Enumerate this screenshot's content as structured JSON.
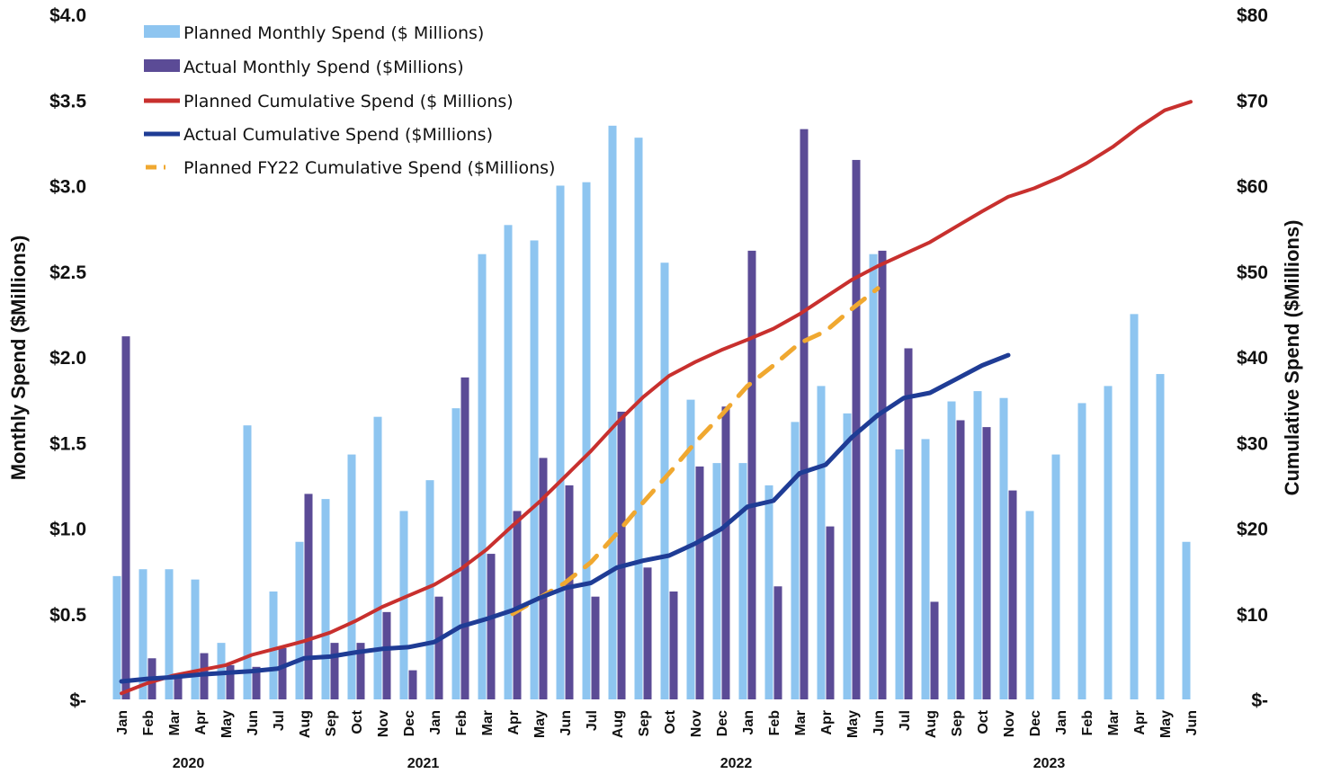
{
  "chart_data": {
    "type": "bar",
    "categories": [
      "Jan",
      "Feb",
      "Mar",
      "Apr",
      "May",
      "Jun",
      "Jul",
      "Aug",
      "Sep",
      "Oct",
      "Nov",
      "Dec",
      "Jan",
      "Feb",
      "Mar",
      "Apr",
      "May",
      "Jun",
      "Jul",
      "Aug",
      "Sep",
      "Oct",
      "Nov",
      "Dec",
      "Jan",
      "Feb",
      "Mar",
      "Apr",
      "May",
      "Jun",
      "Jul",
      "Aug",
      "Sep",
      "Oct",
      "Nov",
      "Dec",
      "Jan",
      "Feb",
      "Mar",
      "Apr",
      "May",
      "Jun"
    ],
    "year_labels": [
      {
        "label": "2020",
        "index": 2.5
      },
      {
        "label": "2021",
        "index": 11.5
      },
      {
        "label": "2022",
        "index": 23.5
      },
      {
        "label": "2023",
        "index": 35.5
      }
    ],
    "ylabel_left": "Monthly Spend ($Millions)",
    "ylabel_right": "Cumulative Spend ($Millions)",
    "ylim_left": [
      0,
      4
    ],
    "ylim_right": [
      0,
      80
    ],
    "yticks_left": [
      "$-",
      "$0.5",
      "$1.0",
      "$1.5",
      "$2.0",
      "$2.5",
      "$3.0",
      "$3.5",
      "$4.0"
    ],
    "yticks_right": [
      "$-",
      "$10",
      "$20",
      "$30",
      "$40",
      "$50",
      "$60",
      "$70",
      "$80"
    ],
    "legend_position": "top-left",
    "series": [
      {
        "name": "Planned Monthly Spend ($ Millions)",
        "type": "bar",
        "axis": "left",
        "color": "#8ec5f0",
        "values": [
          0.72,
          0.76,
          0.76,
          0.7,
          0.33,
          1.6,
          0.63,
          0.92,
          1.17,
          1.43,
          1.65,
          1.1,
          1.28,
          1.7,
          2.6,
          2.77,
          2.68,
          3.0,
          3.02,
          3.35,
          3.28,
          2.55,
          1.75,
          1.38,
          1.38,
          1.25,
          1.62,
          1.83,
          1.67,
          2.6,
          1.46,
          1.52,
          1.74,
          1.8,
          1.76,
          1.1,
          1.43,
          1.73,
          1.83,
          2.25,
          1.9,
          0.92
        ]
      },
      {
        "name": "Actual Monthly Spend ($Millions)",
        "type": "bar",
        "axis": "left",
        "color": "#5b4b96",
        "values": [
          2.12,
          0.24,
          0.13,
          0.27,
          0.2,
          0.19,
          0.3,
          1.2,
          0.33,
          0.33,
          0.51,
          0.17,
          0.6,
          1.88,
          0.85,
          1.1,
          1.41,
          1.25,
          0.6,
          1.68,
          0.77,
          0.63,
          1.36,
          1.71,
          2.62,
          0.66,
          3.33,
          1.01,
          3.15,
          2.62,
          2.05,
          0.57,
          1.63,
          1.59,
          1.22,
          null,
          null,
          null,
          null,
          null,
          null,
          null
        ]
      },
      {
        "name": "Planned Cumulative Spend ($ Millions)",
        "type": "line",
        "axis": "right",
        "color": "#c8302e",
        "values": [
          0.7,
          1.9,
          2.8,
          3.4,
          4.0,
          5.2,
          6.0,
          6.8,
          7.8,
          9.2,
          10.8,
          12.1,
          13.4,
          15.2,
          17.5,
          20.3,
          23.0,
          26.0,
          29.0,
          32.3,
          35.3,
          37.8,
          39.4,
          40.8,
          42.0,
          43.3,
          45.0,
          47.0,
          49.0,
          50.6,
          52.0,
          53.4,
          55.2,
          57.0,
          58.7,
          59.7,
          61.0,
          62.6,
          64.5,
          66.8,
          68.8,
          69.8
        ]
      },
      {
        "name": "Actual Cumulative Spend ($Millions)",
        "type": "line",
        "axis": "right",
        "color": "#1f3c95",
        "values": [
          2.1,
          2.4,
          2.6,
          2.9,
          3.1,
          3.3,
          3.6,
          4.8,
          5.0,
          5.5,
          5.9,
          6.1,
          6.7,
          8.5,
          9.4,
          10.4,
          11.8,
          13.0,
          13.6,
          15.4,
          16.2,
          16.8,
          18.2,
          19.9,
          22.5,
          23.2,
          26.4,
          27.4,
          30.6,
          33.2,
          35.2,
          35.8,
          37.4,
          39.0,
          40.2,
          null,
          null,
          null,
          null,
          null,
          null,
          null
        ]
      },
      {
        "name": "Planned FY22 Cumulative Spend ($Millions)",
        "type": "dashed-line",
        "axis": "right",
        "color": "#f0a830",
        "values": [
          null,
          null,
          null,
          null,
          null,
          null,
          null,
          null,
          null,
          null,
          null,
          null,
          null,
          null,
          null,
          10.0,
          11.8,
          13.6,
          16.0,
          19.4,
          23.0,
          26.4,
          30.0,
          33.2,
          36.6,
          39.0,
          41.6,
          43.0,
          45.6,
          48.0,
          null,
          null,
          null,
          null,
          null,
          null,
          null,
          null,
          null,
          null,
          null,
          null
        ]
      }
    ]
  }
}
